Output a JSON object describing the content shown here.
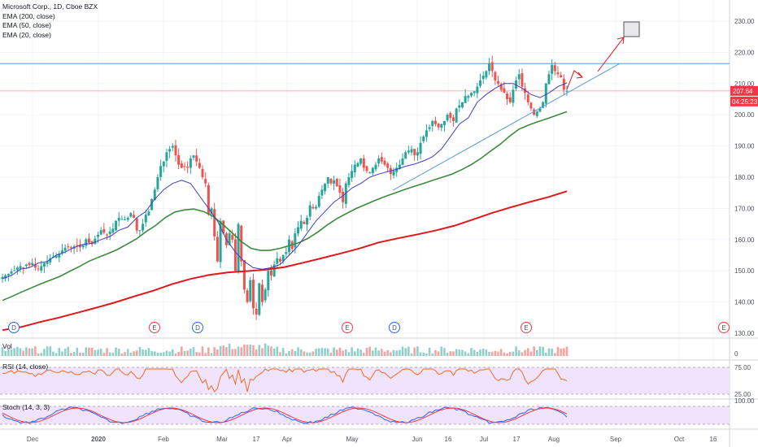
{
  "legend": {
    "symbol": "Microsoft Corp., 1D, Cboe BZX",
    "ema200": "EMA (200, close)",
    "ema50": "EMA (50, close)",
    "ema20": "EMA (20, close)"
  },
  "panes": {
    "vol_label": "Vol",
    "vol_axis": "0",
    "rsi_label": "RSI (14, close)",
    "rsi_axis_top": "75.00",
    "rsi_axis_bottom": "25.00",
    "stoch_label": "Stoch (14, 3, 3)",
    "stoch_axis_top": "100.00"
  },
  "price_tag": {
    "value": "207.64",
    "countdown": "04:25:23",
    "color": "#f23645"
  },
  "colors": {
    "up": "#26a69a",
    "down": "#ef5350",
    "ema20": "#3f3fbf",
    "ema50": "#3d8a3d",
    "ema200": "#e0161b",
    "resistance": "#5b9bd5",
    "current": "#ef5350",
    "trendline": "#5b9bd5",
    "annotation": "#e0161b",
    "rsi_band": "#f0e4fc",
    "rsi_line": "#f26b21",
    "stoch_k": "#2962ff",
    "stoch_d": "#f23645"
  },
  "events": {
    "dividend": "D",
    "earnings": "E"
  },
  "chart_data": {
    "type": "candlestick",
    "y_ticks": [
      "230.00",
      "220.00",
      "210.00",
      "200.00",
      "190.00",
      "180.00",
      "170.00",
      "160.00",
      "150.00",
      "140.00",
      "130.00"
    ],
    "x_ticks": [
      "Dec",
      "2020",
      "Feb",
      "Mar",
      "17",
      "Apr",
      "May",
      "Jun",
      "16",
      "Jul",
      "17",
      "Aug",
      "Sep",
      "Oct",
      "16"
    ],
    "ylim": [
      130,
      232
    ],
    "resistance_level": 216.4,
    "current_price": 207.64,
    "closes": [
      148,
      148.5,
      149,
      149.8,
      150.2,
      151,
      151.5,
      151,
      152,
      151.8,
      152.5,
      151,
      150.5,
      151.5,
      152.5,
      153,
      154,
      154.5,
      154.8,
      155.5,
      156.5,
      157.4,
      157.8,
      157.5,
      157.8,
      158,
      157.5,
      158.2,
      160.1,
      159,
      158.5,
      160.3,
      161.5,
      163,
      162.2,
      161.5,
      162.6,
      163.5,
      166,
      167,
      166.6,
      166.5,
      167,
      168.5,
      167,
      162.9,
      163,
      165,
      168,
      169,
      173,
      176,
      180,
      183.6,
      185,
      188,
      189,
      190,
      187,
      184,
      183,
      183.5,
      183,
      186,
      187,
      185,
      183,
      180,
      178,
      168,
      170,
      161,
      153,
      166,
      162,
      158.2,
      162,
      160,
      150,
      165,
      153,
      144,
      140,
      147,
      138,
      136,
      146,
      140,
      144,
      150,
      148.5,
      152,
      154,
      153,
      155,
      156,
      160,
      157,
      162,
      164,
      166,
      165,
      167,
      171,
      170,
      170.5,
      174,
      176,
      178,
      180,
      178,
      179,
      177,
      175,
      172,
      178,
      180,
      182,
      184,
      184.5,
      186,
      183,
      182,
      181.5,
      183,
      184,
      186,
      185,
      184,
      183,
      181,
      182,
      183,
      184,
      186,
      188,
      188.5,
      189,
      187,
      188,
      191,
      193,
      195,
      196,
      198,
      197,
      196,
      197,
      198,
      200,
      199,
      198,
      202,
      203,
      204,
      206,
      206,
      207,
      207.5,
      209,
      211,
      212.5,
      214,
      216.5,
      214,
      211,
      210,
      208,
      207,
      205,
      204,
      208,
      211,
      213,
      209,
      207,
      204,
      202,
      200,
      201,
      202,
      204,
      210,
      213,
      216,
      214,
      213,
      212,
      208,
      207.64
    ],
    "ema20": [
      147.5,
      148.5,
      150.5,
      151,
      152.5,
      153,
      155,
      156,
      157.5,
      158.5,
      158.8,
      160,
      161,
      163,
      164,
      167,
      169,
      173,
      176,
      178,
      179,
      178,
      174,
      170,
      166,
      160,
      156,
      153,
      151,
      150.5,
      151,
      152,
      155,
      158,
      162,
      166,
      169,
      172,
      174,
      176.5,
      178,
      180,
      181,
      181.8,
      182.5,
      183.5,
      184.2,
      185.2,
      186.5,
      189,
      193,
      197,
      199,
      204,
      206.5,
      208.5,
      210,
      210,
      208.5,
      206.5,
      205.5,
      207,
      209,
      210.2
    ],
    "ema50": [
      140.5,
      141.8,
      143.2,
      144.5,
      145.8,
      147,
      148.2,
      149.8,
      151.3,
      153,
      154.3,
      155.5,
      156.8,
      158.5,
      160.2,
      162.5,
      164.5,
      167,
      168.8,
      169.5,
      169.8,
      169,
      167.5,
      165,
      162.2,
      159.3,
      157.2,
      156.5,
      156.6,
      157.2,
      158.1,
      159,
      160.5,
      162.5,
      164.8,
      166.8,
      168.4,
      170,
      171.3,
      172.6,
      173.8,
      174.9,
      176,
      177,
      178,
      179,
      180,
      181,
      182.4,
      184,
      186,
      188.3,
      190.5,
      193.1,
      195.4,
      196.7,
      197.8,
      198.8,
      199.9,
      201
    ],
    "ema200": [
      131,
      132,
      133.6,
      135,
      136.6,
      138.2,
      139.9,
      141.8,
      143.6,
      145.7,
      147.4,
      148.7,
      149.5,
      149.9,
      150.4,
      151.2,
      152.6,
      154.1,
      155.6,
      157.2,
      159.1,
      160.4,
      161.6,
      162.9,
      164.4,
      166.4,
      168.5,
      170.3,
      172,
      173.6,
      175.5
    ],
    "trendline": [
      [
        175.8
      ],
      [
        216.4
      ]
    ],
    "volume_tick_max": "",
    "rsi_range": [
      25,
      75
    ],
    "stoch_range": [
      0,
      100
    ]
  }
}
